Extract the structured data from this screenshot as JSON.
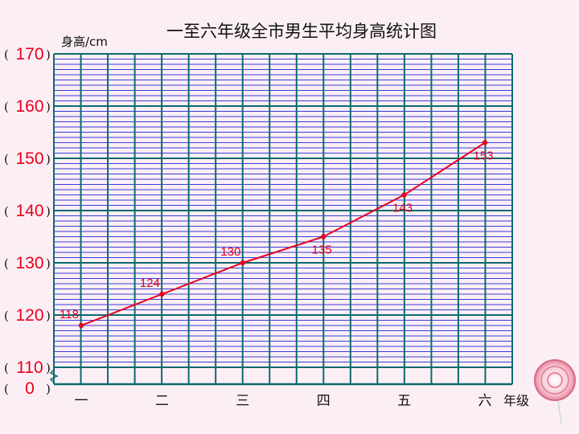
{
  "chart_data": {
    "type": "line",
    "title": "一至六年级全市男生平均身高统计图",
    "ylabel": "身高/cm",
    "xlabel": "年级",
    "categories": [
      "一",
      "二",
      "三",
      "四",
      "五",
      "六"
    ],
    "values": [
      118,
      124,
      130,
      135,
      143,
      153
    ],
    "y_ticks": [
      "170",
      "160",
      "150",
      "140",
      "130",
      "120",
      "110"
    ],
    "y_tick_values": [
      170,
      160,
      150,
      140,
      130,
      120,
      110
    ],
    "y_origin_label": "0",
    "y_axis_broken": true,
    "ylim": [
      110,
      170
    ],
    "grid": true,
    "colors": {
      "line": "#e8001c",
      "tick_labels": "#e8001c",
      "minor_grid": "#3b3bd6",
      "major_grid": "#0d6a6e",
      "vertical_grid": "#0d6a6e"
    }
  },
  "decoration": {
    "icon": "lollipop-icon"
  }
}
